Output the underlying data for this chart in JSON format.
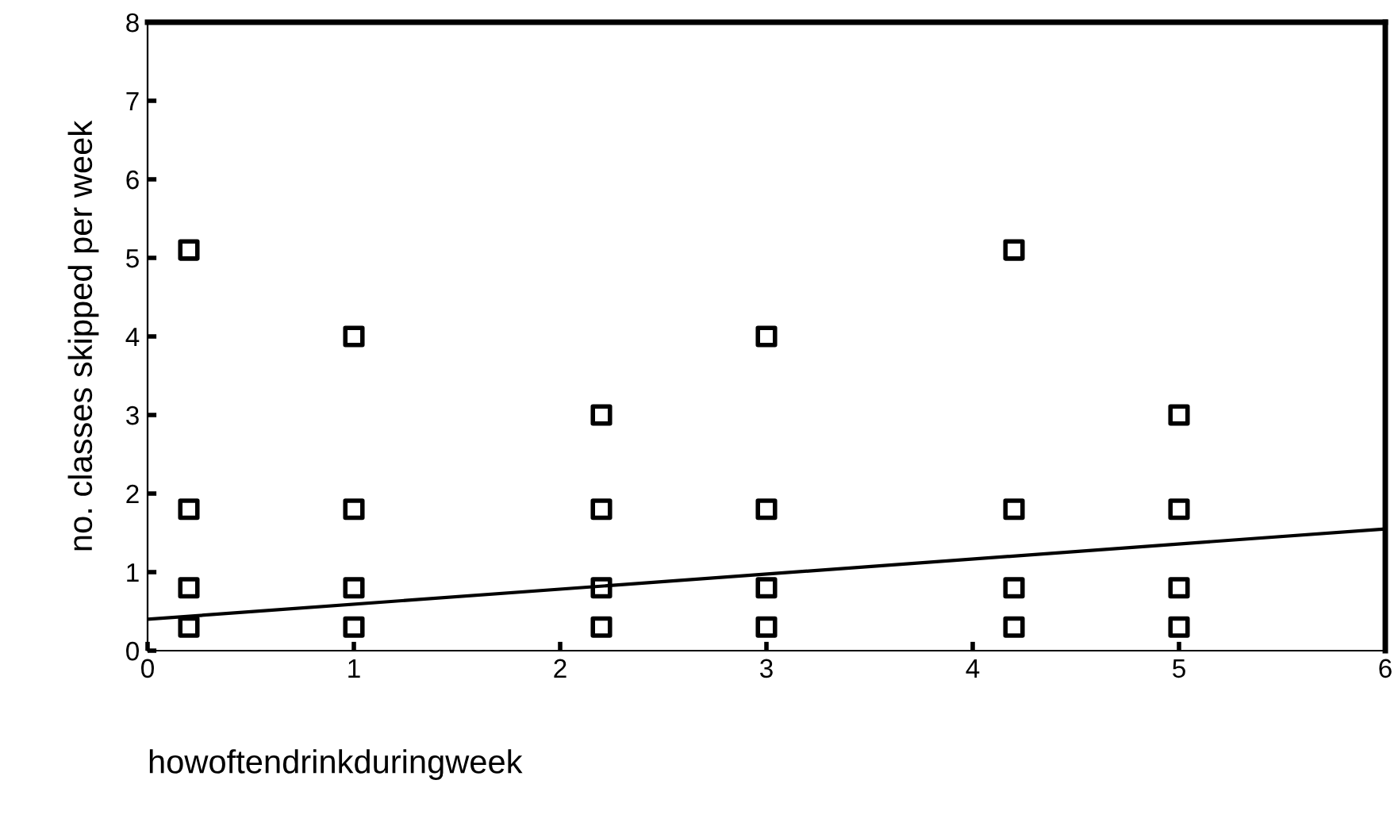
{
  "chart_data": {
    "type": "scatter",
    "xlabel": "howoftendrinkduringweek",
    "ylabel": "no. classes skipped per week",
    "xlim": [
      0,
      6
    ],
    "ylim": [
      0,
      8
    ],
    "xticks": [
      0,
      1,
      2,
      3,
      4,
      5,
      6
    ],
    "yticks": [
      0,
      1,
      2,
      3,
      4,
      5,
      6,
      7,
      8
    ],
    "grid": false,
    "series": [
      {
        "marker": "square",
        "color": "#000000",
        "x": [
          0.2,
          0.2,
          0.2,
          0.2,
          1,
          1,
          1,
          1,
          2.2,
          2.2,
          2.2,
          2.2,
          3,
          3,
          3,
          3,
          4.2,
          4.2,
          4.2,
          4.2,
          5,
          5,
          5,
          5
        ],
        "values": [
          0.3,
          0.8,
          1.8,
          5.1,
          0.3,
          0.8,
          1.8,
          4.0,
          0.3,
          0.8,
          1.8,
          3.0,
          0.3,
          0.8,
          1.8,
          4.0,
          0.3,
          0.8,
          1.8,
          5.1,
          0.3,
          0.8,
          1.8,
          3.0
        ]
      },
      {
        "type": "line",
        "color": "#000000",
        "x": [
          0,
          6
        ],
        "values": [
          0.4,
          1.55
        ],
        "line_style": "solid"
      }
    ]
  }
}
